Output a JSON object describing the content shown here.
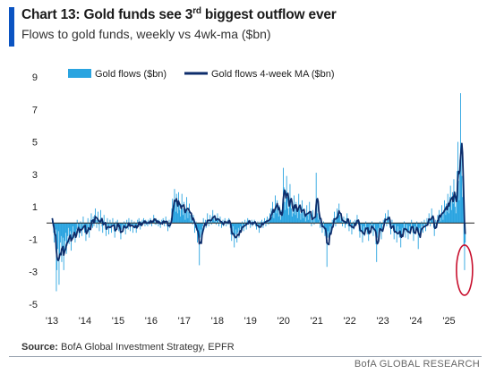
{
  "header": {
    "title_main": "Chart 13: Gold funds see 3",
    "title_sup": "rd",
    "title_rest": " biggest outflow ever",
    "subtitle": "Flows to gold funds, weekly vs 4wk-ma ($bn)"
  },
  "footer": {
    "source_label": "Source:",
    "source_text": " BofA Global Investment Strategy, EPFR",
    "brand": "BofA GLOBAL RESEARCH"
  },
  "colors": {
    "bar": "#2aa4e0",
    "ma_line": "#0d2d6b",
    "accent": "#0b54c2",
    "highlight_ellipse": "#c8102e"
  },
  "chart_data": {
    "type": "bar",
    "frequency": "weekly",
    "start": "2013-01",
    "end": "2025-06",
    "series": [
      {
        "name": "Gold flows ($bn)",
        "kind": "bar",
        "values": [
          0.3,
          -0.2,
          -0.6,
          -1.2,
          -0.8,
          -0.4,
          -4.2,
          -2.9,
          -1.6,
          -0.5,
          -3.8,
          -2.0,
          -1.2,
          -0.8,
          -2.4,
          -1.7,
          -0.9,
          -2.9,
          -1.8,
          -1.1,
          -0.6,
          -1.9,
          -1.4,
          -0.8,
          -0.3,
          -1.3,
          -0.9,
          -0.5,
          -1.7,
          -1.0,
          -0.6,
          -0.2,
          -0.9,
          -0.6,
          -1.2,
          -0.8,
          -0.4,
          0.2,
          -0.6,
          -0.3,
          -0.9,
          -0.5,
          0.1,
          -0.4,
          -0.8,
          -0.3,
          0.4,
          -0.2,
          -0.6,
          -0.2,
          -1.1,
          -0.7,
          -0.3,
          0.3,
          -0.5,
          -0.9,
          -0.4,
          0.2,
          0.6,
          0.1,
          -0.3,
          0.4,
          -0.2,
          0.5,
          0.9,
          0.2,
          -0.3,
          0.3,
          0.7,
          -0.1,
          -0.5,
          0.2,
          0.8,
          0.3,
          -0.2,
          -0.6,
          0.1,
          0.5,
          -0.1,
          -0.4,
          -0.8,
          -0.2,
          0.3,
          -0.3,
          -0.7,
          -0.3,
          0.2,
          -0.2,
          -0.6,
          -0.1,
          0.3,
          -0.2,
          -0.5,
          -0.9,
          -0.3,
          0.1,
          -0.4,
          0.2,
          -0.1,
          -0.5,
          -0.2,
          -0.6,
          -1.0,
          -0.4,
          -0.1,
          -0.5,
          -0.2,
          0.1,
          -0.3,
          -0.7,
          -0.3,
          0.2,
          -0.1,
          -0.4,
          0.3,
          -0.2,
          -0.5,
          -0.1,
          0.2,
          -0.2,
          -0.6,
          -0.3,
          0.1,
          -0.3,
          -0.1,
          -0.6,
          -0.2,
          0.2,
          -0.2,
          0.3,
          -0.1,
          -0.4,
          0.1,
          -0.2,
          0.2,
          -0.1,
          0.3,
          0.1,
          -0.2,
          0.2,
          -0.1,
          0.1,
          -0.2,
          0.2,
          0.1,
          -0.1,
          0.3,
          0.2,
          -0.2,
          0.1,
          0.2,
          0.5,
          0.2,
          -0.1,
          0.3,
          -0.1,
          0.2,
          0.1,
          -0.2,
          0.2,
          0.1,
          -0.3,
          0.0,
          0.2,
          -0.1,
          0.3,
          0.1,
          -0.2,
          0.1,
          0.4,
          0.1,
          -0.2,
          -0.5,
          -0.1,
          0.2,
          -0.3,
          -0.1,
          0.3,
          0.9,
          1.5,
          0.8,
          1.2,
          2.1,
          1.4,
          0.7,
          1.8,
          1.1,
          0.6,
          1.9,
          1.3,
          0.8,
          0.4,
          1.1,
          1.8,
          0.9,
          0.5,
          1.3,
          0.6,
          0.2,
          0.9,
          1.6,
          0.8,
          0.3,
          0.7,
          1.2,
          0.5,
          0.1,
          0.6,
          0.2,
          -0.1,
          0.5,
          0.2,
          -0.6,
          -0.3,
          0.1,
          -0.4,
          -1.2,
          -0.5,
          -0.8,
          -2.6,
          -0.9,
          -0.4,
          -1.1,
          -0.6,
          -0.2,
          0.3,
          -0.4,
          -0.1,
          0.2,
          -0.3,
          0.1,
          0.6,
          0.2,
          -0.2,
          0.1,
          0.5,
          0.2,
          -0.1,
          0.4,
          0.8,
          0.3,
          0.1,
          0.5,
          0.2,
          -0.1,
          0.3,
          0.6,
          0.2,
          -0.2,
          0.1,
          0.4,
          0.1,
          -0.3,
          -0.1,
          0.2,
          -0.2,
          0.1,
          0.3,
          0.0,
          -0.2,
          0.1,
          0.2,
          -0.1,
          0.3,
          0.2,
          -0.3,
          -0.7,
          -1.1,
          -0.6,
          -0.2,
          -0.8,
          -1.5,
          -0.9,
          -0.4,
          -0.7,
          -1.2,
          -0.6,
          -0.3,
          -0.9,
          -0.5,
          -0.2,
          -0.6,
          -0.3,
          0.1,
          -0.2,
          -0.5,
          -0.1,
          0.2,
          -0.1,
          -0.4,
          0.1,
          0.3,
          -0.1,
          0.2,
          0.1,
          -0.3,
          0.0,
          0.2,
          -0.2,
          0.1,
          -0.1,
          0.2,
          0.1,
          -0.2,
          -0.4,
          -0.1,
          0.1,
          -0.3,
          -0.6,
          -0.2,
          0.1,
          -0.2,
          0.2,
          -0.1,
          -0.3,
          0.1,
          0.3,
          0.1,
          -0.2,
          0.2,
          0.4,
          0.1,
          -0.1,
          0.3,
          0.6,
          0.2,
          0.9,
          0.4,
          1.3,
          0.7,
          0.3,
          0.8,
          1.7,
          1.1,
          0.6,
          1.4,
          0.9,
          0.4,
          1.1,
          0.5,
          0.2,
          0.8,
          0.4,
          1.2,
          3.4,
          2.2,
          1.3,
          0.8,
          1.9,
          2.9,
          1.6,
          0.9,
          0.5,
          1.2,
          2.4,
          1.5,
          0.9,
          0.4,
          1.1,
          0.6,
          1.7,
          1.0,
          0.5,
          1.3,
          0.8,
          0.3,
          0.9,
          1.8,
          1.1,
          0.6,
          0.2,
          0.8,
          1.4,
          0.7,
          0.3,
          0.9,
          0.4,
          0.1,
          0.6,
          1.1,
          0.5,
          0.2,
          0.7,
          1.3,
          0.6,
          0.2,
          -0.2,
          0.3,
          0.8,
          0.3,
          -0.1,
          0.4,
          0.9,
          3.1,
          1.4,
          0.6,
          0.2,
          0.8,
          0.4,
          -0.3,
          0.2,
          -0.2,
          -0.6,
          -0.2,
          0.1,
          -0.4,
          -0.8,
          -0.3,
          -1.1,
          -2.7,
          -0.9,
          -0.5,
          -1.2,
          -0.6,
          -0.2,
          -0.7,
          -0.3,
          0.2,
          -0.2,
          0.3,
          0.7,
          0.2,
          -0.2,
          0.4,
          0.9,
          0.3,
          0.6,
          1.2,
          0.5,
          0.1,
          0.5,
          0.2,
          -0.2,
          0.1,
          0.4,
          0.1,
          -0.3,
          -0.1,
          0.3,
          0.6,
          0.2,
          -0.2,
          -0.5,
          -0.1,
          0.2,
          -0.3,
          -0.7,
          -0.2,
          0.1,
          -0.4,
          -0.1,
          0.2,
          -0.2,
          0.1,
          0.5,
          0.2,
          -0.1,
          -0.5,
          -0.9,
          -0.4,
          -0.1,
          -0.6,
          -1.2,
          -0.6,
          -0.2,
          -0.8,
          -0.4,
          0.1,
          -0.3,
          -0.7,
          -0.3,
          -1.1,
          -0.5,
          -0.1,
          -0.6,
          -0.2,
          0.1,
          -0.3,
          -0.8,
          -0.4,
          -0.1,
          -0.5,
          -1.3,
          -2.4,
          -0.9,
          -0.3,
          -0.8,
          -0.4,
          0.1,
          -0.4,
          -1.0,
          -0.5,
          -0.1,
          0.2,
          -0.2,
          0.3,
          0.6,
          0.1,
          -0.2,
          0.4,
          0.8,
          0.3,
          -0.1,
          -0.3,
          -0.7,
          -0.2,
          0.2,
          -0.2,
          -0.5,
          -1.0,
          -0.5,
          -0.1,
          -0.6,
          -1.2,
          -0.6,
          -0.2,
          -0.5,
          -0.9,
          -0.4,
          -1.5,
          -0.7,
          -0.3,
          -0.8,
          -0.4,
          0.1,
          -0.3,
          -0.9,
          -0.4,
          -0.1,
          -0.6,
          -1.0,
          -0.5,
          -0.2,
          -0.7,
          -0.3,
          0.2,
          -0.2,
          -0.6,
          -1.1,
          -0.5,
          -0.2,
          -0.7,
          -0.3,
          0.1,
          -0.4,
          -1.6,
          -0.7,
          -0.3,
          -0.9,
          -0.4,
          0.1,
          -0.2,
          -0.6,
          -0.3,
          0.2,
          -0.1,
          -0.5,
          -0.2,
          0.3,
          -0.1,
          0.2,
          0.6,
          0.2,
          -0.2,
          0.3,
          0.9,
          0.4,
          0.1,
          -0.3,
          -0.8,
          -0.3,
          0.2,
          -0.2,
          0.1,
          0.5,
          0.2,
          0.8,
          0.4,
          0.1,
          0.6,
          1.1,
          0.6,
          0.2,
          0.8,
          1.4,
          0.9,
          0.5,
          1.2,
          0.7,
          1.8,
          1.1,
          0.6,
          1.6,
          2.3,
          1.4,
          0.8,
          1.9,
          1.2,
          2.7,
          1.8,
          1.0,
          0.6,
          1.9,
          3.2,
          5.0,
          2.6,
          1.4,
          3.9,
          8.0,
          4.8,
          2.9,
          1.6,
          2.8,
          -1.4,
          -2.9,
          -1.2
        ]
      },
      {
        "name": "Gold flows 4-week MA ($bn)",
        "kind": "line",
        "derived_from": "4-week moving average of weekly gold flows"
      }
    ],
    "xlabel": "",
    "ylabel": "",
    "x_ticks": [
      "'13",
      "'14",
      "'15",
      "'16",
      "'17",
      "'18",
      "'19",
      "'20",
      "'21",
      "'22",
      "'23",
      "'24",
      "'25"
    ],
    "y_ticks": [
      9,
      7,
      5,
      3,
      1,
      -1,
      -3,
      -5
    ],
    "ylim": [
      -5,
      9
    ],
    "grid": false,
    "legend": "top-left",
    "annotations": [
      "red ellipse highlighting latest weekly outflow"
    ]
  }
}
